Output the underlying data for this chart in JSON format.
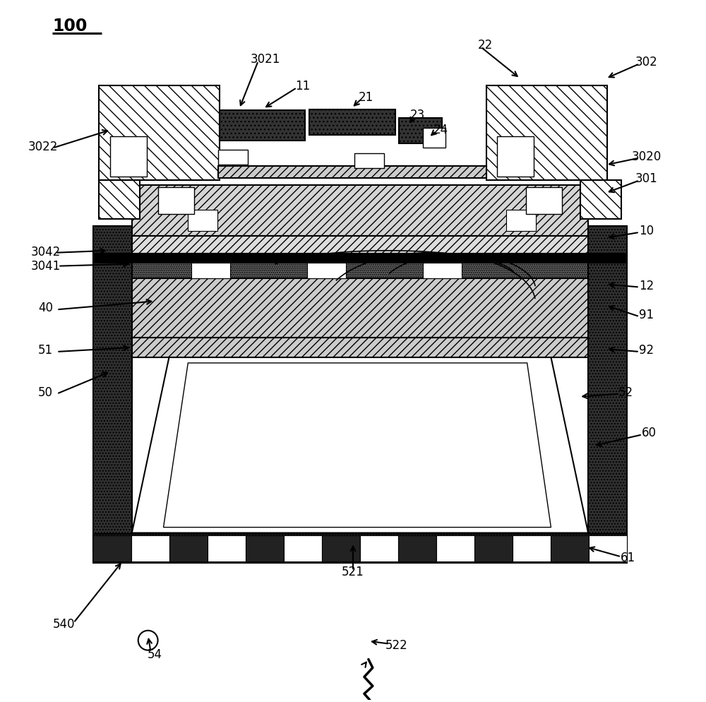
{
  "bg_color": "#ffffff",
  "lc": "#000000",
  "lw": 1.5,
  "fig_w": 10.0,
  "fig_h": 9.94,
  "dpi": 100
}
